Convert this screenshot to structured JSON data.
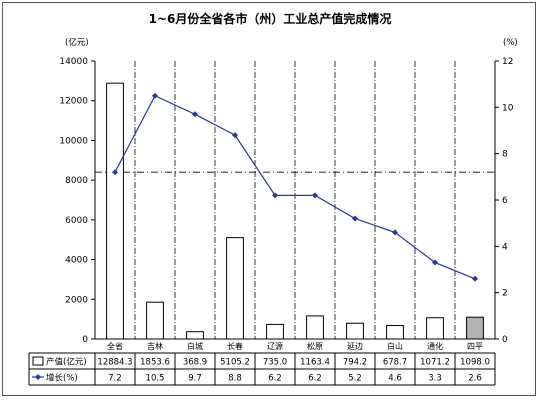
{
  "chart_data": {
    "type": "bar+line",
    "title": "1~6月份全省各市（州）工业总产值完成情况",
    "left_axis": {
      "unit": "(亿元)",
      "ylim": [
        0,
        14000
      ],
      "ticks": [
        0,
        2000,
        4000,
        6000,
        8000,
        10000,
        12000,
        14000
      ]
    },
    "right_axis": {
      "unit": "(%)",
      "ylim": [
        0,
        12
      ],
      "ticks": [
        0,
        2,
        4,
        6,
        8,
        10,
        12
      ]
    },
    "categories": [
      "全省",
      "吉林",
      "白城",
      "长春",
      "辽源",
      "松原",
      "延边",
      "白山",
      "通化",
      "四平"
    ],
    "series": [
      {
        "name": "产值(亿元)",
        "kind": "bar",
        "axis": "left",
        "values": [
          12884.3,
          1853.6,
          368.9,
          5105.2,
          735.0,
          1163.4,
          794.2,
          678.7,
          1071.2,
          1098.0
        ],
        "labels": [
          "12884.3",
          "1853.6",
          "368.9",
          "5105.2",
          "735.0",
          "1163.4",
          "794.2",
          "678.7",
          "1071.2",
          "1098.0"
        ],
        "highlight_index": 9,
        "fill": "#ffffff",
        "highlight_fill": "#b3b3b3"
      },
      {
        "name": "增长(%)",
        "kind": "line",
        "axis": "right",
        "values": [
          7.2,
          10.5,
          9.7,
          8.8,
          6.2,
          6.2,
          5.2,
          4.6,
          3.3,
          2.6
        ],
        "labels": [
          "7.2",
          "10.5",
          "9.7",
          "8.8",
          "6.2",
          "6.2",
          "5.2",
          "4.6",
          "3.3",
          "2.6"
        ],
        "color": "#2b3a8f"
      }
    ],
    "reference_line": {
      "axis": "right",
      "value": 7.2,
      "style": "dash-dot"
    },
    "grid": false,
    "legend": "data-table"
  }
}
